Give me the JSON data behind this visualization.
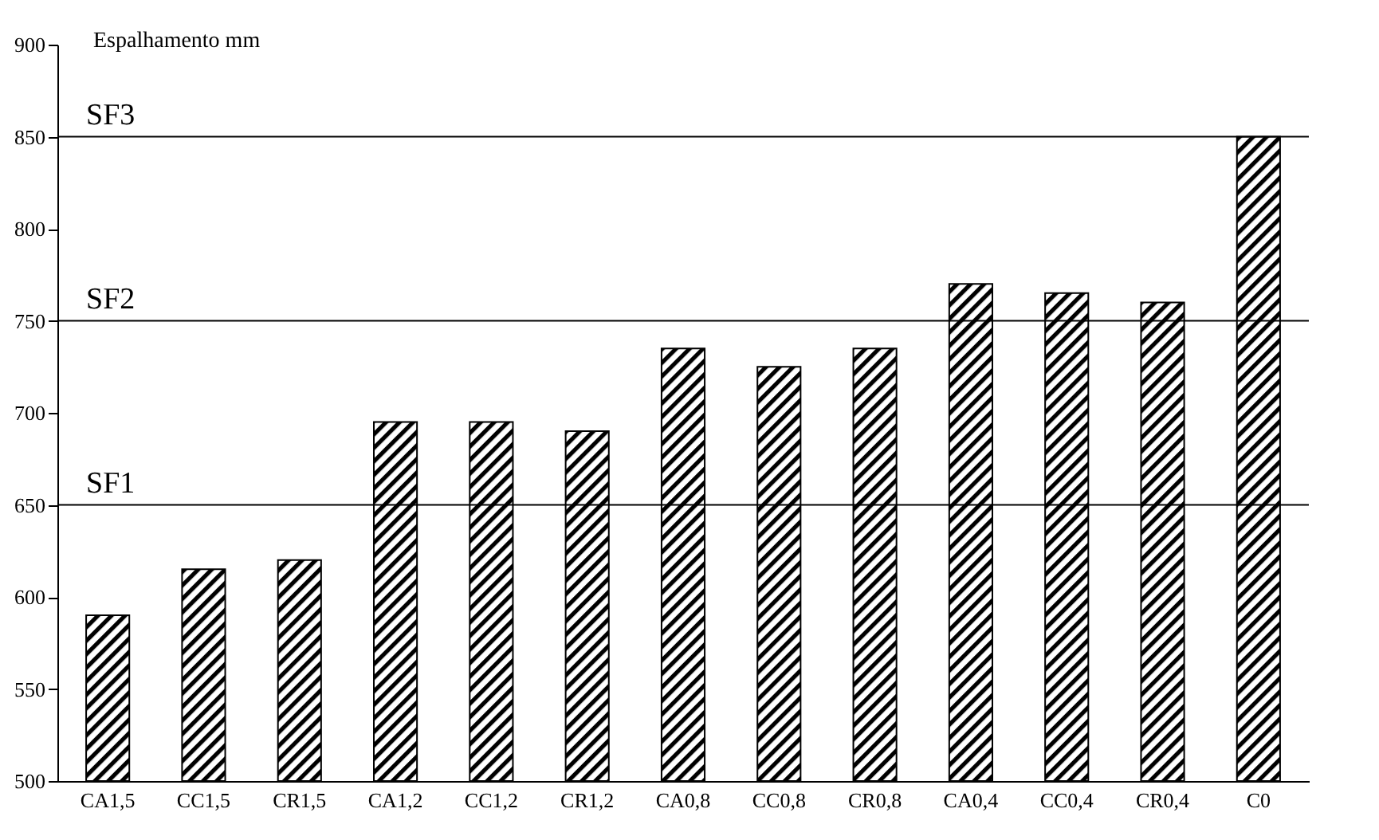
{
  "chart_data": {
    "type": "bar",
    "ylabel": "Espalhamento mm",
    "categories": [
      "CA1,5",
      "CC1,5",
      "CR1,5",
      "CA1,2",
      "CC1,2",
      "CR1,2",
      "CA0,8",
      "CC0,8",
      "CR0,8",
      "CA0,4",
      "CC0,4",
      "CR0,4",
      "C0"
    ],
    "values": [
      590,
      615,
      620,
      695,
      695,
      690,
      735,
      725,
      735,
      770,
      765,
      760,
      850
    ],
    "color": "#000000",
    "ylim": [
      500,
      900
    ],
    "yticks": [
      500,
      550,
      600,
      650,
      700,
      750,
      800,
      850,
      900
    ],
    "ref_lines": [
      {
        "axis": "y",
        "value": 650,
        "label": "SF1"
      },
      {
        "axis": "y",
        "value": 750,
        "label": "SF2"
      },
      {
        "axis": "y",
        "value": 850,
        "label": "SF3"
      }
    ]
  }
}
